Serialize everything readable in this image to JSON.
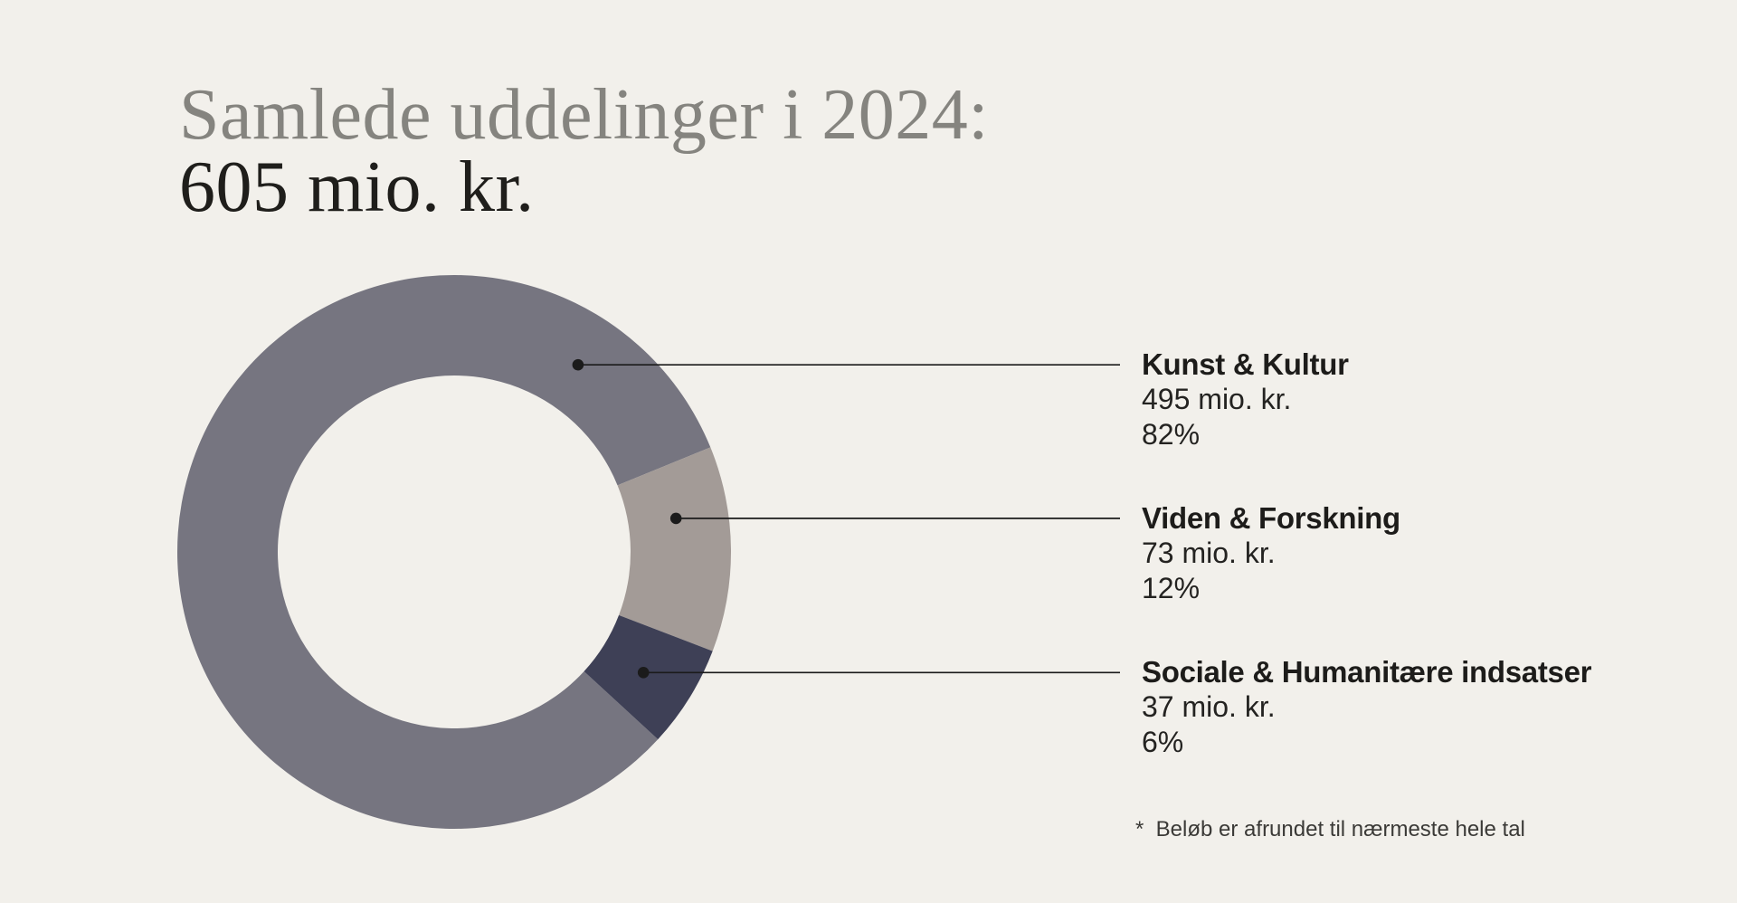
{
  "title": {
    "line1": "Samlede uddelinger i 2024:",
    "line2": "605 mio. kr."
  },
  "chart_data": {
    "type": "pie",
    "subtype": "donut",
    "title": "Samlede uddelinger i 2024: 605 mio. kr.",
    "total_value": 605,
    "unit": "mio. kr.",
    "start_angle_deg": 132.6,
    "legend_position": "right",
    "slices": [
      {
        "label": "Kunst & Kultur",
        "value": 495,
        "percent": 82,
        "amount_label": "495 mio. kr.",
        "percent_label": "82%",
        "color": "#767580"
      },
      {
        "label": "Viden & Forskning",
        "value": 73,
        "percent": 12,
        "amount_label": "73 mio. kr.",
        "percent_label": "12%",
        "color": "#a39b97"
      },
      {
        "label": "Sociale & Humanitære indsatser",
        "value": 37,
        "percent": 6,
        "amount_label": "37 mio. kr.",
        "percent_label": "6%",
        "color": "#3e4056"
      }
    ]
  },
  "footnote": "*  Beløb er afrundet til nærmeste hele tal",
  "colors": {
    "background": "#f2f0eb",
    "title_muted": "#85847f",
    "title_strong": "#1f1e1b",
    "label_text": "#1d1c1a",
    "leader": "#1b1b1b",
    "footnote_text": "#3b3a37"
  }
}
